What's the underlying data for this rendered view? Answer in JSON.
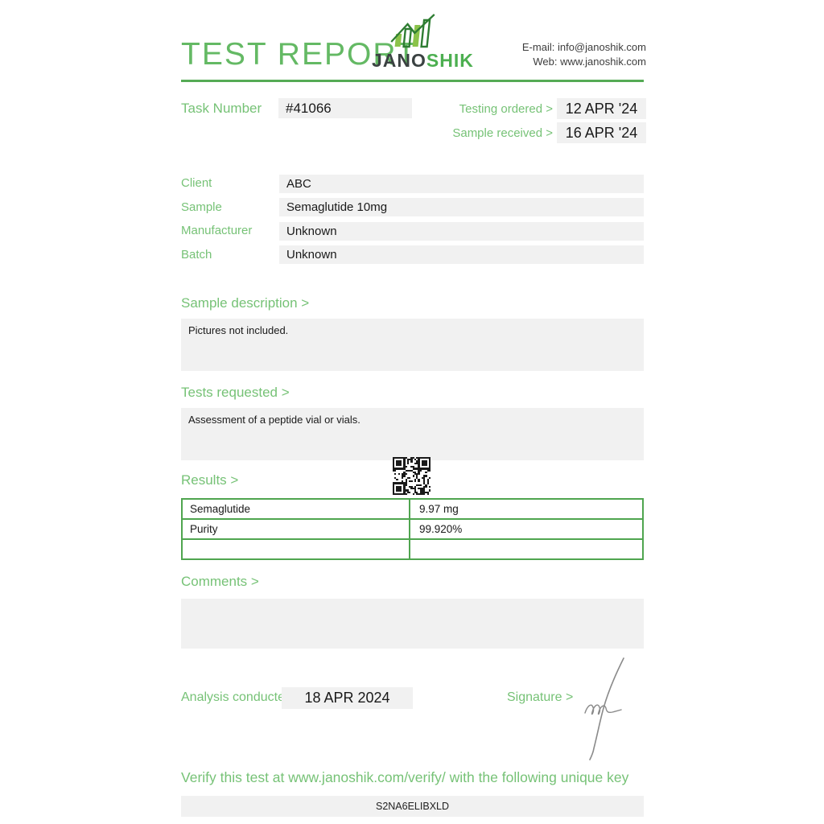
{
  "header": {
    "title": "TEST REPORT",
    "brand": {
      "name_dark": "JANO",
      "name_green": "SHIK"
    },
    "contact": {
      "email_label": "E-mail:",
      "email": "info@janoshik.com",
      "web_label": "Web:",
      "web": "www.janoshik.com"
    }
  },
  "task": {
    "label": "Task Number",
    "number": "#41066"
  },
  "dates": {
    "testing_ordered_label": "Testing ordered  >",
    "testing_ordered": "12 APR '24",
    "sample_received_label": "Sample received >",
    "sample_received": "16 APR '24"
  },
  "details": {
    "rows": [
      {
        "label": "Client",
        "value": "ABC"
      },
      {
        "label": "Sample",
        "value": "Semaglutide 10mg"
      },
      {
        "label": "Manufacturer",
        "value": "Unknown"
      },
      {
        "label": "Batch",
        "value": "Unknown"
      }
    ]
  },
  "sections": {
    "sample_description": {
      "label": "Sample description >",
      "content": "Pictures not included."
    },
    "tests_requested": {
      "label": "Tests requested >",
      "content": "Assessment of a peptide vial or vials."
    },
    "results": {
      "label": "Results >",
      "table": [
        {
          "name": "Semaglutide",
          "value": "9.97 mg"
        },
        {
          "name": "Purity",
          "value": "99.920%"
        },
        {
          "name": "",
          "value": ""
        }
      ]
    },
    "comments": {
      "label": "Comments >",
      "content": ""
    }
  },
  "footer": {
    "analysis_label": "Analysis conducted >",
    "analysis_date": "18 APR 2024",
    "signature_label": "Signature >",
    "verify_text": "Verify this test at www.janoshik.com/verify/ with the following unique key",
    "verify_key": "S2NA6ELIBXLD"
  },
  "colors": {
    "title_green": "#64b964",
    "label_green": "#76c276",
    "rule_green": "#55ab55",
    "table_border_green": "#4fa54f",
    "logo_dark": "#3b4242",
    "logo_green": "#4caf50",
    "box_gray": "#f1f1f1"
  }
}
